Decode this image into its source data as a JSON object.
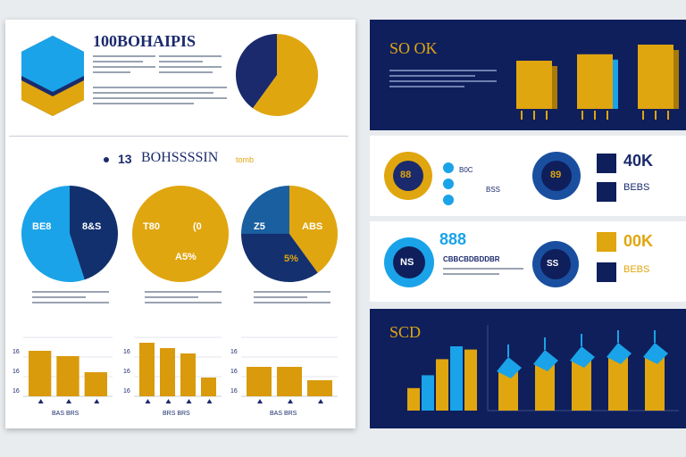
{
  "left": {
    "header": {
      "title": "100BOHAIPIS"
    },
    "section2": {
      "heading": "BOHSSSSIN",
      "number": "13",
      "tag": "tomb"
    },
    "top_pie": {
      "values": [
        60,
        40
      ],
      "colors": [
        "#e0a60f",
        "#1a2a6c"
      ]
    },
    "pies": [
      {
        "labels": [
          "BE8",
          "8&S"
        ],
        "values": [
          45,
          55
        ],
        "colors": [
          "#12306e",
          "#1aa3e8"
        ]
      },
      {
        "labels": [
          "T80",
          "(0",
          "A5%"
        ],
        "values": [
          100
        ],
        "colors": [
          "#e0a60f"
        ]
      },
      {
        "labels": [
          "Z5",
          "ABS",
          "5%"
        ],
        "values": [
          40,
          35,
          25
        ],
        "colors": [
          "#e0a60f",
          "#14306e",
          "#1a5fa0"
        ]
      }
    ],
    "bar_charts": [
      {
        "ticks": [
          "16",
          "16",
          "16"
        ],
        "values": [
          85,
          75,
          45
        ],
        "caption": "BAS BRS"
      },
      {
        "ticks": [
          "16",
          "16",
          "16"
        ],
        "values": [
          100,
          90,
          80,
          35
        ],
        "caption": "BRS BRS"
      },
      {
        "ticks": [
          "16",
          "16",
          "16"
        ],
        "values": [
          55,
          55,
          30
        ],
        "caption": "BAS BRS"
      }
    ]
  },
  "right": {
    "top": {
      "title": "SO OK",
      "bars": [
        75,
        85,
        100
      ]
    },
    "row1": {
      "circle1": "88",
      "legend_label": "B0C",
      "legend_label2": "BSS",
      "circle2": "89",
      "stat": "40K",
      "stat_label": "BEBS"
    },
    "row2": {
      "stat": "888",
      "subtitle": "CBBCBDBDDBR",
      "circle1": "NS",
      "circle2": "SS",
      "stat2": "00K",
      "stat2_label": "BEBS"
    },
    "bottom": {
      "title": "SCD",
      "chart_data": {
        "type": "bar",
        "values": [
          35,
          55,
          80,
          100,
          95
        ],
        "values_right": [
          55,
          65,
          70,
          75,
          75
        ]
      }
    }
  },
  "colors": {
    "navy": "#0f1f5c",
    "gold": "#e0a60f",
    "sky": "#1aa3e8"
  }
}
